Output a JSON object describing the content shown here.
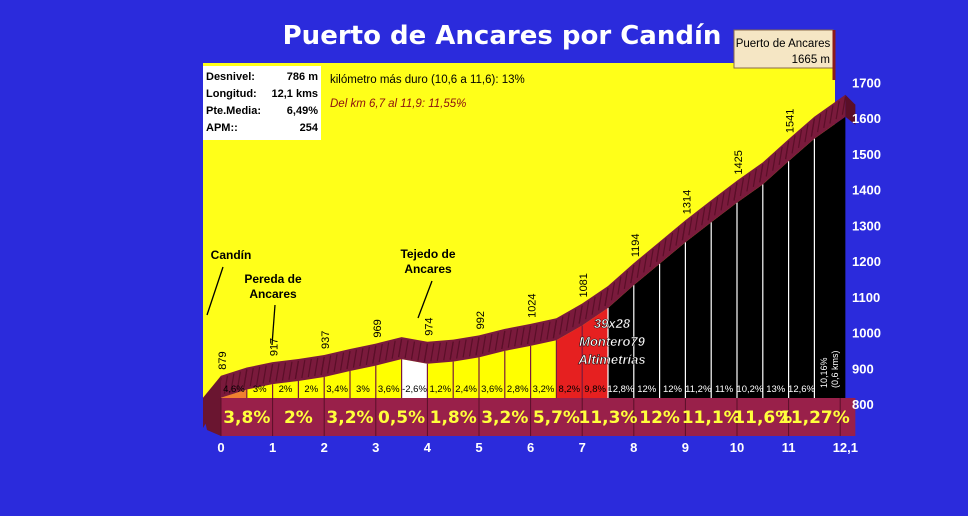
{
  "title": "Puerto de Ancares por Candín",
  "summit_box": {
    "name": "Puerto de Ancares",
    "altitude": "1665 m"
  },
  "stats": [
    {
      "label": "Desnivel:",
      "value": "786 m"
    },
    {
      "label": "Longitud:",
      "value": "12,1 kms"
    },
    {
      "label": "Pte.Media:",
      "value": "6,49%"
    },
    {
      "label": "APM::",
      "value": "254"
    }
  ],
  "notes": {
    "hardest_km": "kilómetro más duro (10,6 a 11,6):   13%",
    "hardest_stretch": "Del km 6,7 al 11,9:   11,55%"
  },
  "watermark": [
    "39x28",
    "Montero79",
    "Altimetrías"
  ],
  "colors": {
    "background": "#2b2bdc",
    "chart_bg": "#ffff19",
    "profile": "#7a1a3c",
    "band": "#99204a",
    "band_text": "#ffff3c",
    "fill_black": "#000000",
    "fill_yellow": "#ffff00",
    "fill_red": "#e62020",
    "fill_orange": "#f08030",
    "fill_white": "#ffffff"
  },
  "chart_data": {
    "type": "area",
    "title": "Puerto de Ancares por Candín",
    "xlabel": "",
    "ylabel": "",
    "xlim": [
      0,
      12.1
    ],
    "ylim": [
      700,
      1700
    ],
    "x_ticks": [
      "0",
      "1",
      "2",
      "3",
      "4",
      "5",
      "6",
      "7",
      "8",
      "9",
      "10",
      "11",
      "12,1"
    ],
    "y_ticks": [
      "800",
      "900",
      "1000",
      "1100",
      "1200",
      "1300",
      "1400",
      "1500",
      "1600",
      "1700"
    ],
    "profile": [
      {
        "km": 0,
        "alt": 879,
        "label": "879"
      },
      {
        "km": 0.5,
        "alt": 902,
        "label": ""
      },
      {
        "km": 1,
        "alt": 917,
        "label": "917"
      },
      {
        "km": 1.5,
        "alt": 926,
        "label": ""
      },
      {
        "km": 2,
        "alt": 937,
        "label": "937"
      },
      {
        "km": 2.5,
        "alt": 954,
        "label": ""
      },
      {
        "km": 3,
        "alt": 969,
        "label": "969"
      },
      {
        "km": 3.5,
        "alt": 987,
        "label": ""
      },
      {
        "km": 4,
        "alt": 974,
        "label": "974"
      },
      {
        "km": 4.5,
        "alt": 980,
        "label": ""
      },
      {
        "km": 5,
        "alt": 992,
        "label": "992"
      },
      {
        "km": 5.5,
        "alt": 1010,
        "label": ""
      },
      {
        "km": 6,
        "alt": 1024,
        "label": "1024"
      },
      {
        "km": 6.5,
        "alt": 1040,
        "label": ""
      },
      {
        "km": 7,
        "alt": 1081,
        "label": "1081"
      },
      {
        "km": 7.5,
        "alt": 1130,
        "label": ""
      },
      {
        "km": 8,
        "alt": 1194,
        "label": "1194"
      },
      {
        "km": 8.5,
        "alt": 1254,
        "label": ""
      },
      {
        "km": 9,
        "alt": 1314,
        "label": "1314"
      },
      {
        "km": 9.5,
        "alt": 1370,
        "label": ""
      },
      {
        "km": 10,
        "alt": 1425,
        "label": "1425"
      },
      {
        "km": 10.5,
        "alt": 1476,
        "label": ""
      },
      {
        "km": 11,
        "alt": 1541,
        "label": "1541"
      },
      {
        "km": 11.5,
        "alt": 1604,
        "label": ""
      },
      {
        "km": 12.1,
        "alt": 1665,
        "label": ""
      }
    ],
    "half_km_segments": [
      {
        "from": 0,
        "to": 0.5,
        "grade": "4,6%",
        "color": "orange"
      },
      {
        "from": 0.5,
        "to": 1,
        "grade": "3%",
        "color": "yellow"
      },
      {
        "from": 1,
        "to": 1.5,
        "grade": "2%",
        "color": "yellow"
      },
      {
        "from": 1.5,
        "to": 2,
        "grade": "2%",
        "color": "yellow"
      },
      {
        "from": 2,
        "to": 2.5,
        "grade": "3,4%",
        "color": "yellow"
      },
      {
        "from": 2.5,
        "to": 3,
        "grade": "3%",
        "color": "yellow"
      },
      {
        "from": 3,
        "to": 3.5,
        "grade": "3,6%",
        "color": "yellow"
      },
      {
        "from": 3.5,
        "to": 4,
        "grade": "-2,6%",
        "color": "white"
      },
      {
        "from": 4,
        "to": 4.5,
        "grade": "1,2%",
        "color": "yellow"
      },
      {
        "from": 4.5,
        "to": 5,
        "grade": "2,4%",
        "color": "yellow"
      },
      {
        "from": 5,
        "to": 5.5,
        "grade": "3,6%",
        "color": "yellow"
      },
      {
        "from": 5.5,
        "to": 6,
        "grade": "2,8%",
        "color": "yellow"
      },
      {
        "from": 6,
        "to": 6.5,
        "grade": "3,2%",
        "color": "yellow"
      },
      {
        "from": 6.5,
        "to": 7,
        "grade": "8,2%",
        "color": "red"
      },
      {
        "from": 7,
        "to": 7.5,
        "grade": "9,8%",
        "color": "red"
      },
      {
        "from": 7.5,
        "to": 8,
        "grade": "12,8%",
        "color": "black"
      },
      {
        "from": 8,
        "to": 8.5,
        "grade": "12%",
        "color": "black"
      },
      {
        "from": 8.5,
        "to": 9,
        "grade": "12%",
        "color": "black"
      },
      {
        "from": 9,
        "to": 9.5,
        "grade": "11,2%",
        "color": "black"
      },
      {
        "from": 9.5,
        "to": 10,
        "grade": "11%",
        "color": "black"
      },
      {
        "from": 10,
        "to": 10.5,
        "grade": "10,2%",
        "color": "black"
      },
      {
        "from": 10.5,
        "to": 11,
        "grade": "13%",
        "color": "black"
      },
      {
        "from": 11,
        "to": 11.5,
        "grade": "12,6%",
        "color": "black"
      },
      {
        "from": 11.5,
        "to": 12.1,
        "grade": "10,16% (0,6 kms)",
        "color": "black"
      }
    ],
    "km_grades": [
      "3,8%",
      "2%",
      "3,2%",
      "0,5%",
      "1,8%",
      "3,2%",
      "5,7%",
      "11,3%",
      "12%",
      "11,1%",
      "11,6%",
      "11,27%"
    ],
    "places": [
      {
        "name": [
          "Candín"
        ],
        "km": 0
      },
      {
        "name": [
          "Pereda de",
          "Ancares"
        ],
        "km": 1.6
      },
      {
        "name": [
          "Tejedo de",
          "Ancares"
        ],
        "km": 3.9
      }
    ]
  }
}
